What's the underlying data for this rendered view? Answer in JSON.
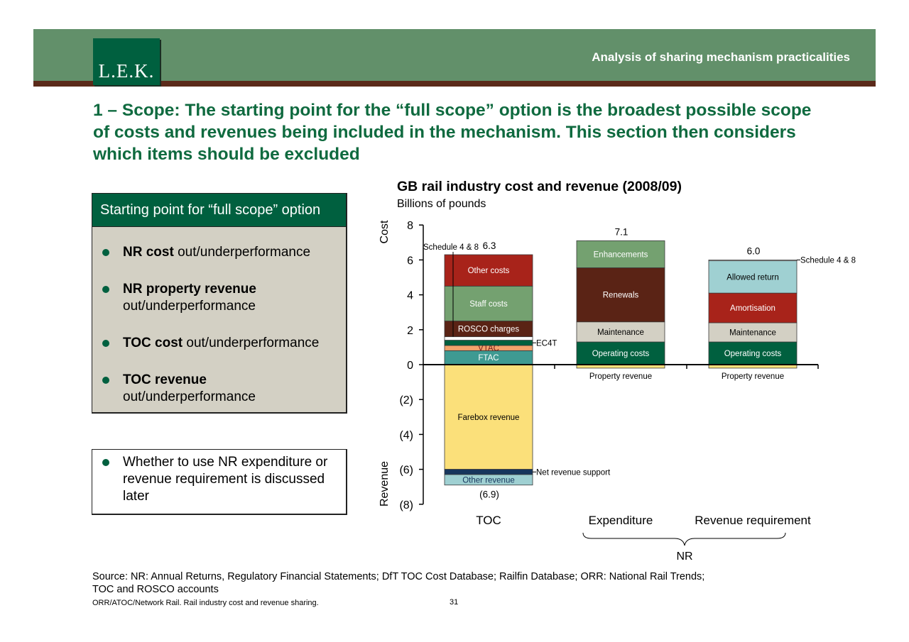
{
  "header": {
    "logo_text": "L.E.K.",
    "title": "Analysis of sharing mechanism practicalities"
  },
  "headline": "1 – Scope: The starting point for the “full scope” option is the broadest possible scope of costs and revenues being included in the mechanism. This section then considers which items should be excluded",
  "panel": {
    "title": "Starting point for “full scope” option",
    "items": [
      {
        "bold": "NR cost",
        "rest": " out/underperformance"
      },
      {
        "bold": "NR property revenue",
        "rest": " out/underperformance"
      },
      {
        "bold": "TOC cost",
        "rest": " out/underperformance"
      },
      {
        "bold": "TOC revenue",
        "rest": " out/underperformance"
      }
    ]
  },
  "note": {
    "text": "Whether to use NR expenditure or revenue requirement is discussed later"
  },
  "source": "Source: NR: Annual Returns, Regulatory Financial Statements; DfT TOC Cost Database; Railfin Database; ORR: National Rail Trends; TOC and ROSCO accounts",
  "footer": {
    "text": "ORR/ATOC/Network Rail.  Rail industry cost and revenue sharing.",
    "page": "31"
  },
  "colors": {
    "brand_green": "#00603f",
    "banner_green": "#62906a",
    "banner_brown": "#5b2a1a",
    "panel_grey": "#d3d0c4"
  },
  "chart_data": {
    "type": "bar",
    "stacked": true,
    "title": "GB rail industry cost and revenue (2008/09)",
    "subtitle": "Billions of pounds",
    "ylabel_top": "Cost",
    "ylabel_bottom": "Revenue",
    "ylim": [
      -8,
      8
    ],
    "yticks": [
      8,
      6,
      4,
      2,
      0,
      -2,
      -4,
      -6,
      -8
    ],
    "ytick_labels": [
      "8",
      "6",
      "4",
      "2",
      "0",
      "(2)",
      "(4)",
      "(6)",
      "(8)"
    ],
    "categories": [
      "TOC",
      "Expenditure",
      "Revenue requirement"
    ],
    "group_brace_label": "NR",
    "totals": [
      {
        "category": "TOC",
        "label": "6.3",
        "value": 6.3
      },
      {
        "category": "Expenditure",
        "label": "7.1",
        "value": 7.1
      },
      {
        "category": "Revenue requirement",
        "label": "6.0",
        "value": 6.0
      },
      {
        "category": "TOC",
        "label": "(6.9)",
        "value": -6.9
      }
    ],
    "bars": [
      {
        "category": "TOC",
        "segments": [
          {
            "name": "FTAC",
            "from": 0,
            "to": 0.8,
            "color": "#3e9a92",
            "label_color": "#ffffff"
          },
          {
            "name": "VTAC",
            "from": 0.8,
            "to": 1.1,
            "color": "#f2a36b",
            "label_color": "#7a1e1e"
          },
          {
            "name": "EC4T",
            "from": 1.1,
            "to": 1.4,
            "color": "#00603f",
            "callout": true
          },
          {
            "name": "Schedule 4 & 8",
            "from": 1.4,
            "to": 1.6,
            "color": "#ffffff",
            "callout": true
          },
          {
            "name": "ROSCO charges",
            "from": 1.6,
            "to": 2.5,
            "color": "#5a2315",
            "label_color": "#ffffff"
          },
          {
            "name": "Staff costs",
            "from": 2.5,
            "to": 4.5,
            "color": "#74a170",
            "label_color": "#ffffff"
          },
          {
            "name": "Other costs",
            "from": 4.5,
            "to": 6.3,
            "color": "#a8231a",
            "label_color": "#ffffff"
          },
          {
            "name": "Farebox revenue",
            "from": 0,
            "to": -6.0,
            "color": "#fbe07a",
            "label_color": "#000000"
          },
          {
            "name": "Net revenue support",
            "from": -6.0,
            "to": -6.3,
            "color": "#17365d",
            "callout": true
          },
          {
            "name": "Other revenue",
            "from": -6.3,
            "to": -6.9,
            "color": "#9fd0d2",
            "label_color": "#17365d"
          }
        ]
      },
      {
        "category": "Expenditure",
        "segments": [
          {
            "name": "Operating costs",
            "from": 0,
            "to": 1.3,
            "color": "#00603f",
            "label_color": "#ffffff"
          },
          {
            "name": "Maintenance",
            "from": 1.3,
            "to": 2.45,
            "color": "#d3d0c4",
            "label_color": "#000000"
          },
          {
            "name": "Renewals",
            "from": 2.45,
            "to": 5.55,
            "color": "#5a2315",
            "label_color": "#ffffff"
          },
          {
            "name": "Enhancements",
            "from": 5.55,
            "to": 7.1,
            "color": "#74a170",
            "label_color": "#ffffff"
          },
          {
            "name": "Property revenue",
            "from": 0,
            "to": -0.2,
            "color": "#fbe07a",
            "below_label": true
          }
        ]
      },
      {
        "category": "Revenue requirement",
        "segments": [
          {
            "name": "Operating costs",
            "from": 0,
            "to": 1.3,
            "color": "#00603f",
            "label_color": "#ffffff"
          },
          {
            "name": "Maintenance",
            "from": 1.3,
            "to": 2.4,
            "color": "#d3d0c4",
            "label_color": "#000000"
          },
          {
            "name": "Amortisation",
            "from": 2.4,
            "to": 4.1,
            "color": "#a8231a",
            "label_color": "#ffffff"
          },
          {
            "name": "Allowed return",
            "from": 4.1,
            "to": 5.95,
            "color": "#9fd0d2",
            "label_color": "#000000"
          },
          {
            "name": "Schedule 4 & 8",
            "from": 5.95,
            "to": 6.0,
            "color": "#ffffff",
            "callout": true
          },
          {
            "name": "Property revenue",
            "from": 0,
            "to": -0.2,
            "color": "#fbe07a",
            "below_label": true
          }
        ]
      }
    ]
  }
}
